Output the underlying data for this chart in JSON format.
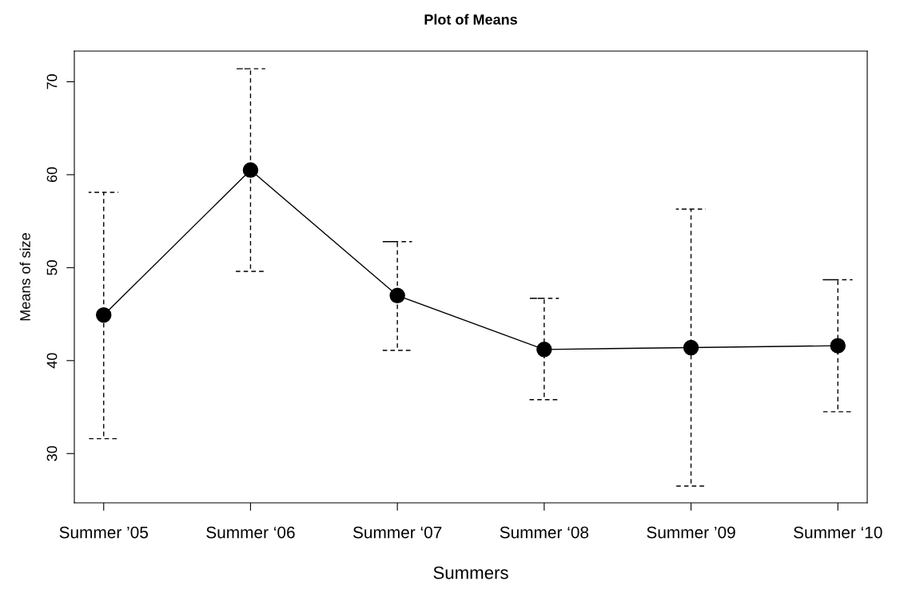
{
  "chart_data": {
    "type": "line",
    "title": "Plot of Means",
    "xlabel": "Summers",
    "ylabel": "Means of size",
    "categories": [
      "Summer ’05",
      "Summer ‘06",
      "Summer ‘07",
      "Summer ‘08",
      "Summer ’09",
      "Summer ‘10"
    ],
    "color": "#000000",
    "values": [
      44.9,
      60.5,
      47.0,
      41.2,
      41.4,
      41.6
    ],
    "errors": [
      [
        31.6,
        58.1
      ],
      [
        49.6,
        71.4
      ],
      [
        41.1,
        52.8
      ],
      [
        35.8,
        46.7
      ],
      [
        26.5,
        56.3
      ],
      [
        34.5,
        48.7
      ]
    ],
    "ylim": [
      24.7,
      73.3
    ],
    "yticks": [
      30,
      40,
      50,
      60,
      70
    ],
    "grid": false,
    "legend": false,
    "marker": "circle",
    "line_style": "solid"
  }
}
